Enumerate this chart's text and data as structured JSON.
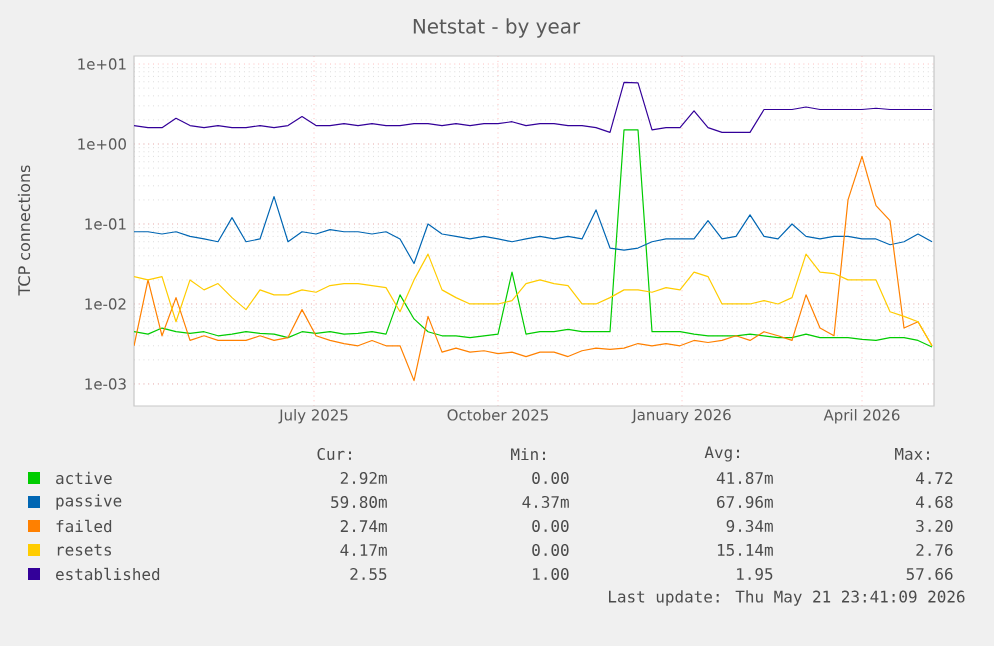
{
  "chart_data": {
    "type": "line",
    "title": "Netstat - by year",
    "ylabel": "TCP connections",
    "log": "y",
    "grid": true,
    "legend": "bottom",
    "marker": "none",
    "line_style": "solid",
    "xlim": [
      "2025-04-02",
      "2026-05-07"
    ],
    "xticks": [
      {
        "value": "2025-07-01",
        "label": "July 2025"
      },
      {
        "value": "2025-10-01",
        "label": "October 2025"
      },
      {
        "value": "2026-01-01",
        "label": "January 2026"
      },
      {
        "value": "2026-04-01",
        "label": "April 2026"
      }
    ],
    "ylim": [
      0.00053,
      12.6
    ],
    "yticks": [
      {
        "value": 0.001,
        "label": "1e-03"
      },
      {
        "value": 0.01,
        "label": "1e-02"
      },
      {
        "value": 0.1,
        "label": "1e-01"
      },
      {
        "value": 1,
        "label": "1e+00"
      },
      {
        "value": 10,
        "label": "1e+01"
      }
    ],
    "x": [
      "2025-04-02",
      "2025-04-09",
      "2025-04-16",
      "2025-04-23",
      "2025-04-30",
      "2025-05-07",
      "2025-05-14",
      "2025-05-21",
      "2025-05-28",
      "2025-06-04",
      "2025-06-11",
      "2025-06-18",
      "2025-06-25",
      "2025-07-02",
      "2025-07-09",
      "2025-07-16",
      "2025-07-23",
      "2025-07-30",
      "2025-08-06",
      "2025-08-13",
      "2025-08-20",
      "2025-08-27",
      "2025-09-03",
      "2025-09-10",
      "2025-09-17",
      "2025-09-24",
      "2025-10-01",
      "2025-10-08",
      "2025-10-15",
      "2025-10-22",
      "2025-10-29",
      "2025-11-05",
      "2025-11-12",
      "2025-11-19",
      "2025-11-26",
      "2025-12-03",
      "2025-12-10",
      "2025-12-17",
      "2025-12-24",
      "2025-12-31",
      "2026-01-07",
      "2026-01-14",
      "2026-01-21",
      "2026-01-28",
      "2026-02-04",
      "2026-02-11",
      "2026-02-18",
      "2026-02-25",
      "2026-03-04",
      "2026-03-11",
      "2026-03-18",
      "2026-03-25",
      "2026-04-01",
      "2026-04-08",
      "2026-04-15",
      "2026-04-22",
      "2026-04-29",
      "2026-05-06"
    ],
    "series": [
      {
        "name": "active",
        "color": "#00cc00",
        "values": [
          0.0045,
          0.0042,
          0.005,
          0.0045,
          0.0043,
          0.0045,
          0.004,
          0.0042,
          0.0045,
          0.0043,
          0.0042,
          0.0038,
          0.0045,
          0.0043,
          0.0045,
          0.0042,
          0.0043,
          0.0045,
          0.0042,
          0.013,
          0.0065,
          0.0045,
          0.004,
          0.004,
          0.0038,
          0.004,
          0.0042,
          0.025,
          0.0042,
          0.0045,
          0.0045,
          0.0048,
          0.0045,
          0.0045,
          0.0045,
          1.5,
          1.5,
          0.0045,
          0.0045,
          0.0045,
          0.0042,
          0.004,
          0.004,
          0.004,
          0.0042,
          0.004,
          0.0038,
          0.0038,
          0.0042,
          0.0038,
          0.0038,
          0.0038,
          0.0036,
          0.0035,
          0.0038,
          0.0038,
          0.0035,
          0.0029
        ]
      },
      {
        "name": "passive",
        "color": "#0066b3",
        "values": [
          0.08,
          0.08,
          0.075,
          0.08,
          0.07,
          0.065,
          0.06,
          0.12,
          0.06,
          0.065,
          0.22,
          0.06,
          0.08,
          0.075,
          0.085,
          0.08,
          0.08,
          0.075,
          0.08,
          0.065,
          0.032,
          0.1,
          0.075,
          0.07,
          0.065,
          0.07,
          0.065,
          0.06,
          0.065,
          0.07,
          0.065,
          0.07,
          0.065,
          0.15,
          0.05,
          0.047,
          0.05,
          0.06,
          0.065,
          0.065,
          0.065,
          0.11,
          0.065,
          0.07,
          0.13,
          0.07,
          0.065,
          0.1,
          0.07,
          0.065,
          0.07,
          0.07,
          0.065,
          0.065,
          0.055,
          0.06,
          0.075,
          0.06
        ]
      },
      {
        "name": "failed",
        "color": "#ff8000",
        "values": [
          0.003,
          0.02,
          0.004,
          0.012,
          0.0035,
          0.004,
          0.0035,
          0.0035,
          0.0035,
          0.004,
          0.0035,
          0.0038,
          0.0085,
          0.004,
          0.0035,
          0.0032,
          0.003,
          0.0035,
          0.003,
          0.003,
          0.0011,
          0.007,
          0.0025,
          0.0028,
          0.0025,
          0.0026,
          0.0024,
          0.0025,
          0.0022,
          0.0025,
          0.0025,
          0.0022,
          0.0026,
          0.0028,
          0.0027,
          0.0028,
          0.0032,
          0.003,
          0.0032,
          0.003,
          0.0035,
          0.0033,
          0.0035,
          0.004,
          0.0035,
          0.0045,
          0.004,
          0.0035,
          0.013,
          0.005,
          0.004,
          0.2,
          0.7,
          0.17,
          0.11,
          0.005,
          0.006,
          0.003
        ]
      },
      {
        "name": "resets",
        "color": "#ffcc00",
        "values": [
          0.022,
          0.02,
          0.022,
          0.006,
          0.02,
          0.015,
          0.018,
          0.012,
          0.0085,
          0.015,
          0.013,
          0.013,
          0.015,
          0.014,
          0.017,
          0.018,
          0.018,
          0.017,
          0.016,
          0.008,
          0.02,
          0.042,
          0.015,
          0.012,
          0.01,
          0.01,
          0.01,
          0.011,
          0.018,
          0.02,
          0.018,
          0.017,
          0.01,
          0.01,
          0.012,
          0.015,
          0.015,
          0.014,
          0.016,
          0.015,
          0.025,
          0.022,
          0.01,
          0.01,
          0.01,
          0.011,
          0.01,
          0.012,
          0.042,
          0.025,
          0.024,
          0.02,
          0.02,
          0.02,
          0.008,
          0.007,
          0.006,
          0.003
        ]
      },
      {
        "name": "established",
        "color": "#330099",
        "values": [
          1.7,
          1.6,
          1.6,
          2.1,
          1.7,
          1.6,
          1.7,
          1.6,
          1.6,
          1.7,
          1.6,
          1.7,
          2.2,
          1.7,
          1.7,
          1.8,
          1.7,
          1.8,
          1.7,
          1.7,
          1.8,
          1.8,
          1.7,
          1.8,
          1.7,
          1.8,
          1.8,
          1.9,
          1.7,
          1.8,
          1.8,
          1.7,
          1.7,
          1.6,
          1.4,
          5.9,
          5.8,
          1.5,
          1.6,
          1.6,
          2.6,
          1.6,
          1.4,
          1.4,
          1.4,
          2.7,
          2.7,
          2.7,
          2.9,
          2.7,
          2.7,
          2.7,
          2.7,
          2.8,
          2.7,
          2.7,
          2.7,
          2.7
        ]
      }
    ],
    "annotations": [
      "Cur:",
      "Min:",
      "Avg:",
      "Max:",
      "2.92m",
      "0.00",
      "41.87m",
      "4.72",
      "59.80m",
      "4.37m",
      "67.96m",
      "4.68",
      "2.74m",
      "0.00",
      "9.34m",
      "3.20",
      "4.17m",
      "0.00",
      "15.14m",
      "2.76",
      "2.55",
      "1.00",
      "1.95",
      "57.66",
      "Last update: Thu May 21 23:41:09 2026"
    ]
  }
}
